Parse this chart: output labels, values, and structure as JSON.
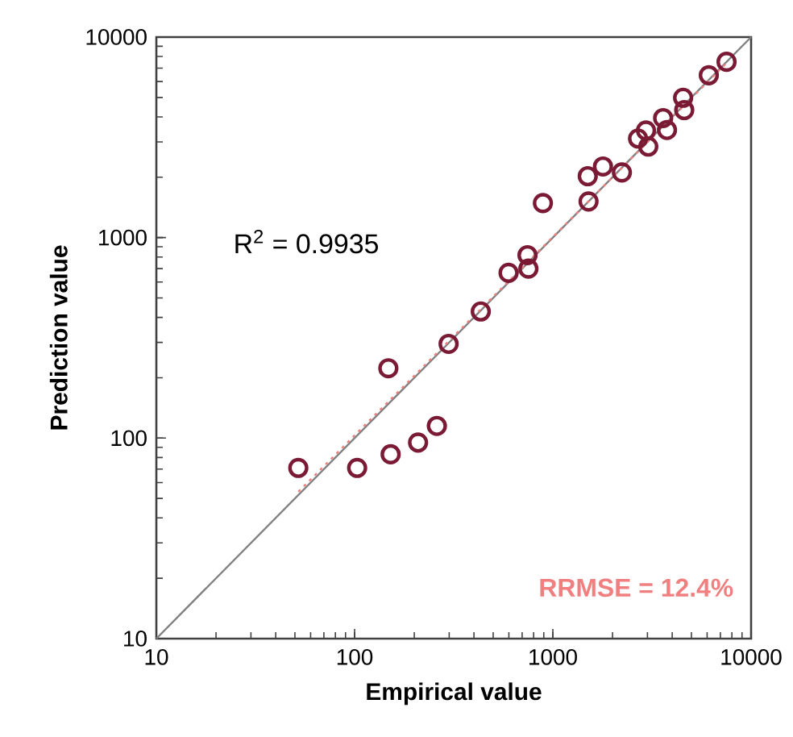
{
  "chart_data": {
    "type": "scatter",
    "xlabel": "Empirical value",
    "ylabel": "Prediction value",
    "log": "xy",
    "xlim": [
      10,
      10000
    ],
    "ylim": [
      10,
      10000
    ],
    "xticks": [
      10,
      100,
      1000,
      10000
    ],
    "yticks": [
      10,
      100,
      1000,
      10000
    ],
    "grid": false,
    "marker": "circle",
    "annotations": [
      "R$^{2}$ = 0.9935",
      "RRMSE = 12.4%"
    ],
    "series": [
      {
        "color": "#7b1a34",
        "x": [
          52,
          103,
          152,
          209,
          260,
          148,
          298,
          433,
          598,
          745,
          753,
          891,
          1514,
          1500,
          1790,
          2230,
          2690,
          2950,
          3030,
          3600,
          3765,
          4540,
          4600,
          6120,
          7520
        ],
        "values": [
          71,
          71,
          83,
          95,
          115,
          223,
          295,
          428,
          667,
          817,
          700,
          1486,
          1514,
          2024,
          2263,
          2113,
          3120,
          3420,
          2844,
          3945,
          3440,
          4980,
          4325,
          6450,
          7530
        ]
      },
      {
        "type": "line",
        "color": "#808080",
        "line_style": "solid",
        "marker": "none",
        "x": [
          10,
          10000
        ],
        "values": [
          10,
          10000
        ]
      },
      {
        "type": "line",
        "color": "#f08080",
        "line_style": "dotted",
        "marker": "none",
        "x": [
          52,
          7500
        ],
        "values": [
          54,
          7400
        ]
      }
    ]
  }
}
